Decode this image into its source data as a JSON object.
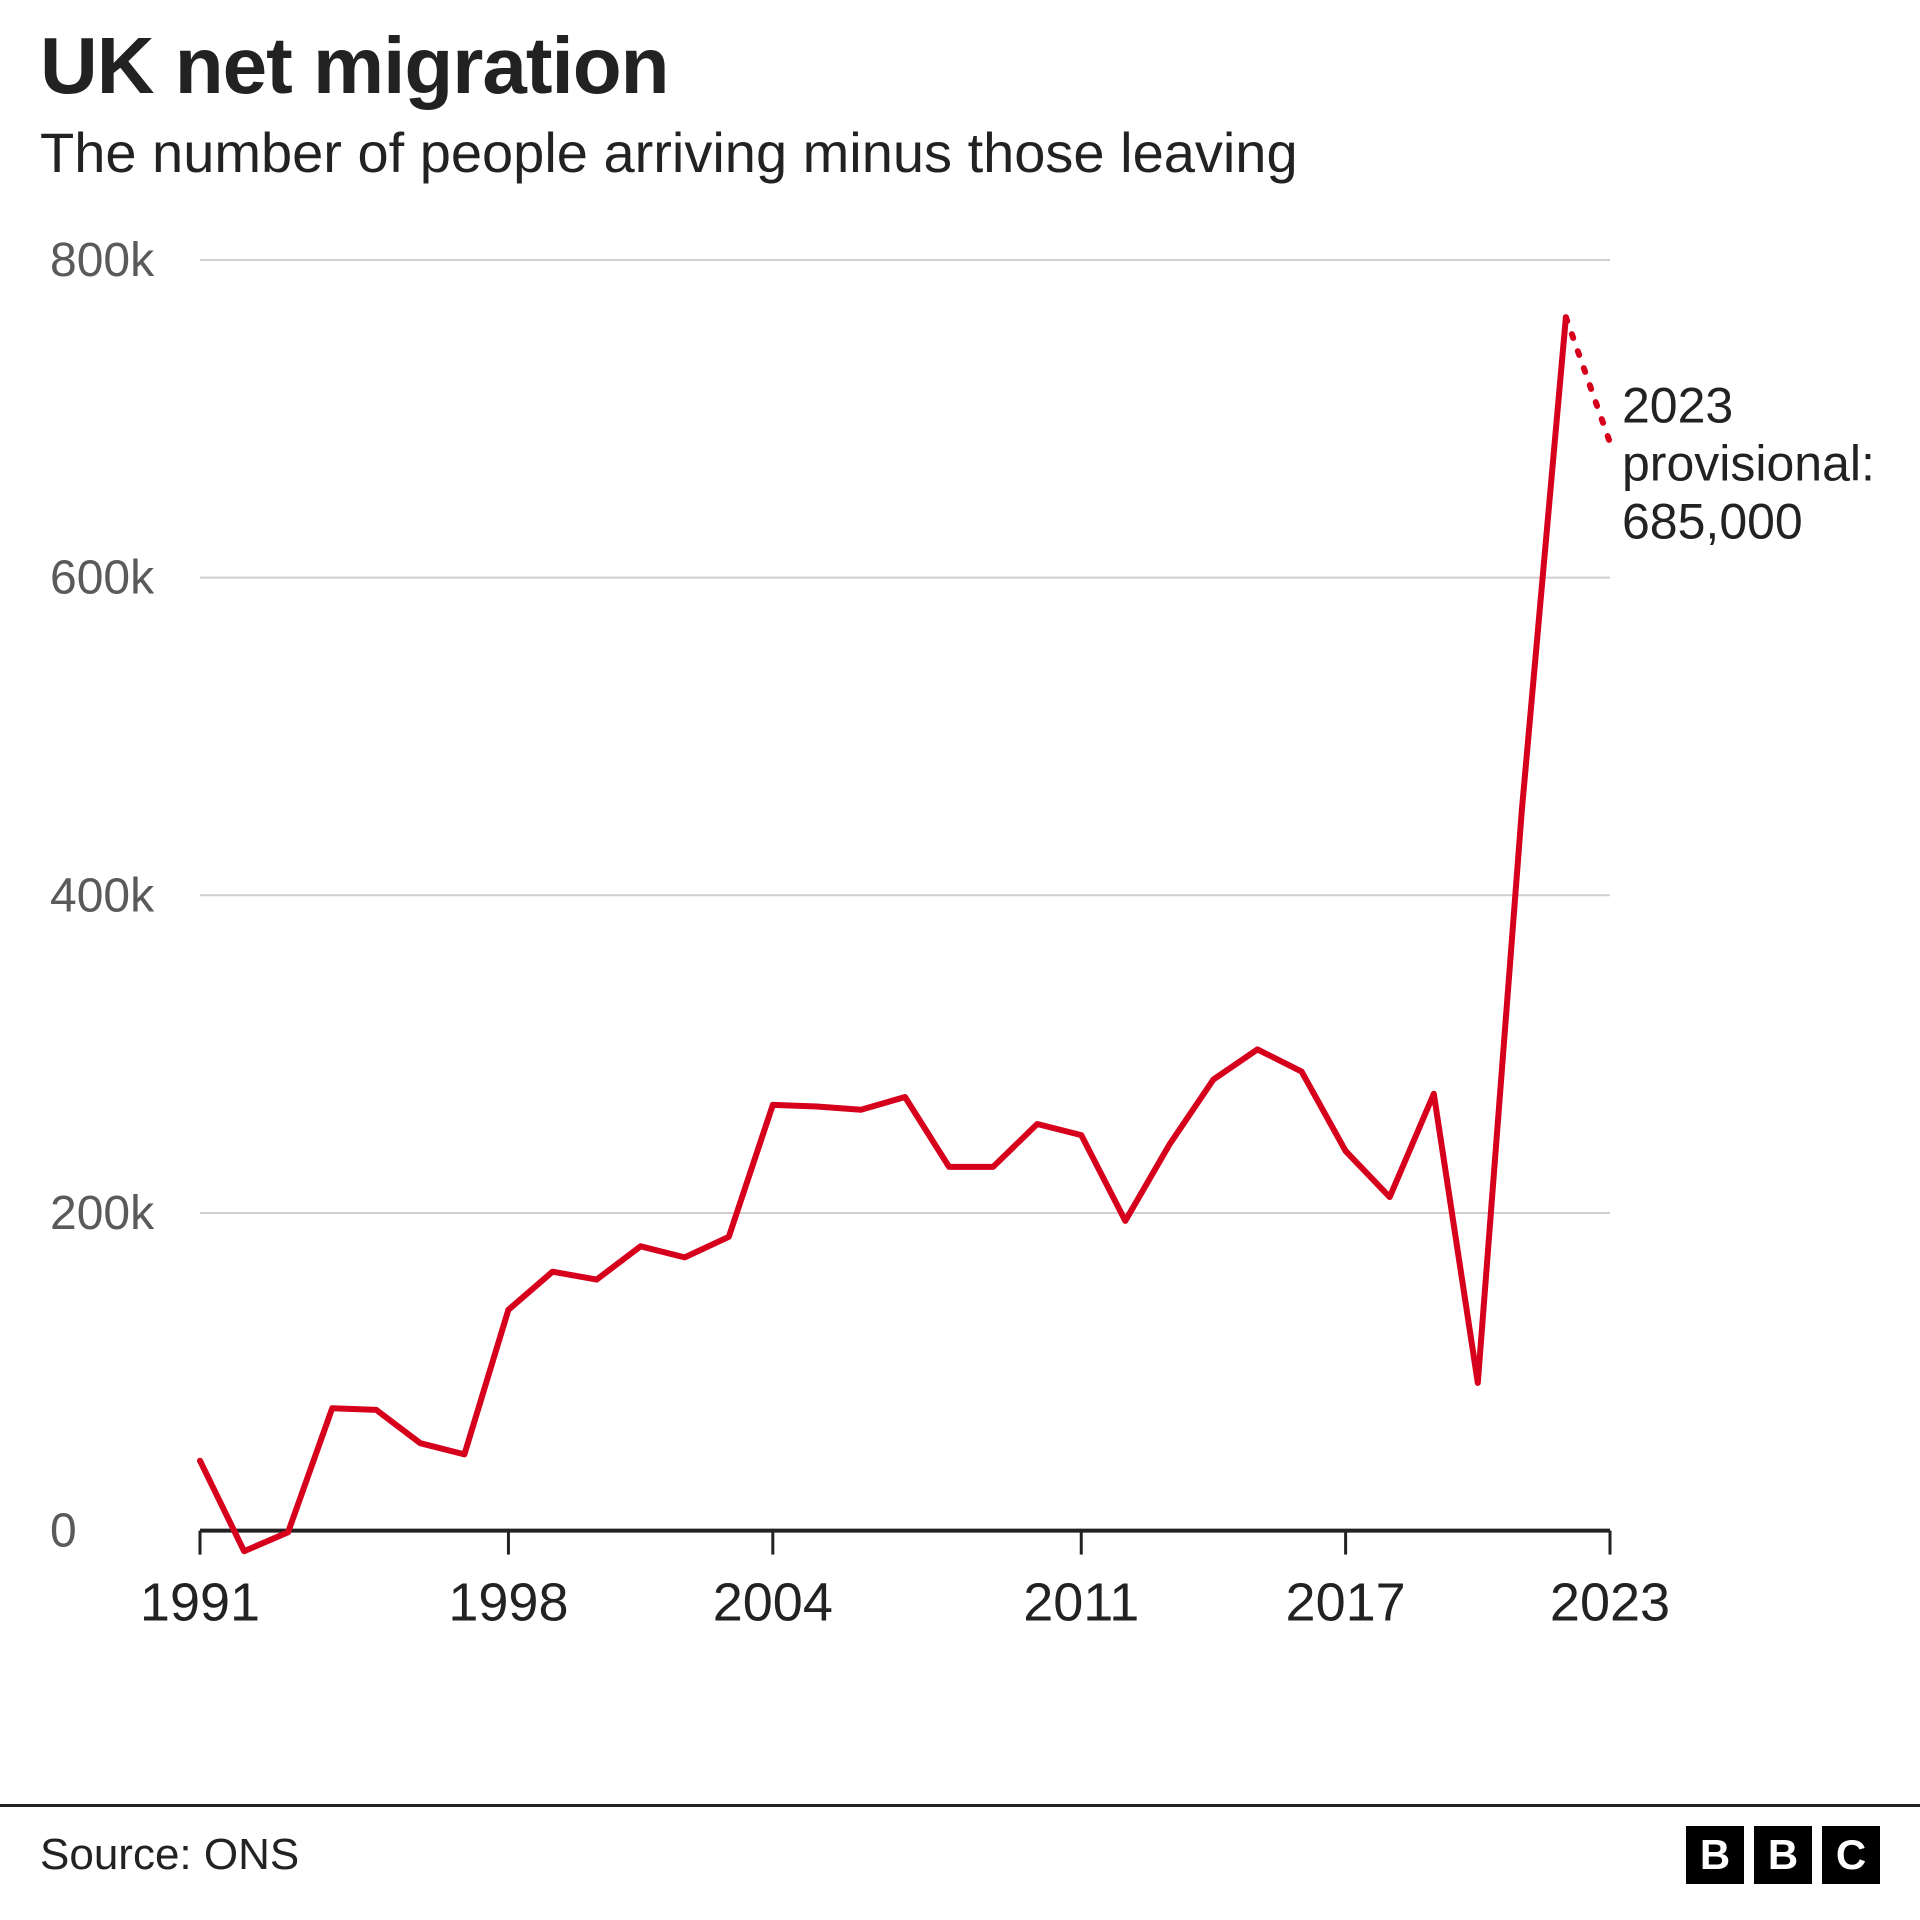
{
  "header": {
    "title": "UK net migration",
    "subtitle": "The number of people arriving minus those leaving"
  },
  "chart": {
    "type": "line",
    "background_color": "#ffffff",
    "grid_color": "#cfcfcf",
    "axis_color": "#222222",
    "x_tick_color": "#222222",
    "font_family": "Helvetica Neue, Arial, sans-serif",
    "title_fontsize": 80,
    "subtitle_fontsize": 56,
    "y_label_fontsize": 48,
    "x_label_fontsize": 54,
    "line_color": "#d6001c",
    "line_width": 6,
    "dotted_pattern": "4,14",
    "x_start": 1991,
    "x_end": 2023,
    "y_min": -50000,
    "y_max": 800000,
    "y_ticks": [
      0,
      200000,
      400000,
      600000,
      800000
    ],
    "y_tick_labels": [
      "0",
      "200k",
      "400k",
      "600k",
      "800k"
    ],
    "zero_line_value": 0,
    "x_ticks": [
      1991,
      1998,
      2004,
      2011,
      2017,
      2023
    ],
    "series_solid": [
      {
        "year": 1991,
        "value": 44000
      },
      {
        "year": 1992,
        "value": -13000
      },
      {
        "year": 1993,
        "value": -1000
      },
      {
        "year": 1994,
        "value": 77000
      },
      {
        "year": 1995,
        "value": 76000
      },
      {
        "year": 1996,
        "value": 55000
      },
      {
        "year": 1997,
        "value": 48000
      },
      {
        "year": 1998,
        "value": 139000
      },
      {
        "year": 1999,
        "value": 163000
      },
      {
        "year": 2000,
        "value": 158000
      },
      {
        "year": 2001,
        "value": 179000
      },
      {
        "year": 2002,
        "value": 172000
      },
      {
        "year": 2003,
        "value": 185000
      },
      {
        "year": 2004,
        "value": 268000
      },
      {
        "year": 2005,
        "value": 267000
      },
      {
        "year": 2006,
        "value": 265000
      },
      {
        "year": 2007,
        "value": 273000
      },
      {
        "year": 2008,
        "value": 229000
      },
      {
        "year": 2009,
        "value": 229000
      },
      {
        "year": 2010,
        "value": 256000
      },
      {
        "year": 2011,
        "value": 249000
      },
      {
        "year": 2012,
        "value": 195000
      },
      {
        "year": 2013,
        "value": 243000
      },
      {
        "year": 2014,
        "value": 284000
      },
      {
        "year": 2015,
        "value": 303000
      },
      {
        "year": 2016,
        "value": 289000
      },
      {
        "year": 2017,
        "value": 239000
      },
      {
        "year": 2018,
        "value": 210000
      },
      {
        "year": 2019,
        "value": 275000
      },
      {
        "year": 2020,
        "value": 93000
      },
      {
        "year": 2021,
        "value": 454000
      },
      {
        "year": 2022,
        "value": 764000
      }
    ],
    "series_dotted": [
      {
        "year": 2022,
        "value": 764000
      },
      {
        "year": 2023,
        "value": 685000
      }
    ],
    "annotation": {
      "lines": [
        "2023",
        "provisional:",
        "685,000"
      ],
      "anchor_year": 2023,
      "anchor_value": 685000,
      "dx": 12,
      "dy_line1": -20
    }
  },
  "footer": {
    "source": "Source: ONS",
    "logo_letters": [
      "B",
      "B",
      "C"
    ],
    "logo_bg": "#000000",
    "logo_fg": "#ffffff"
  }
}
